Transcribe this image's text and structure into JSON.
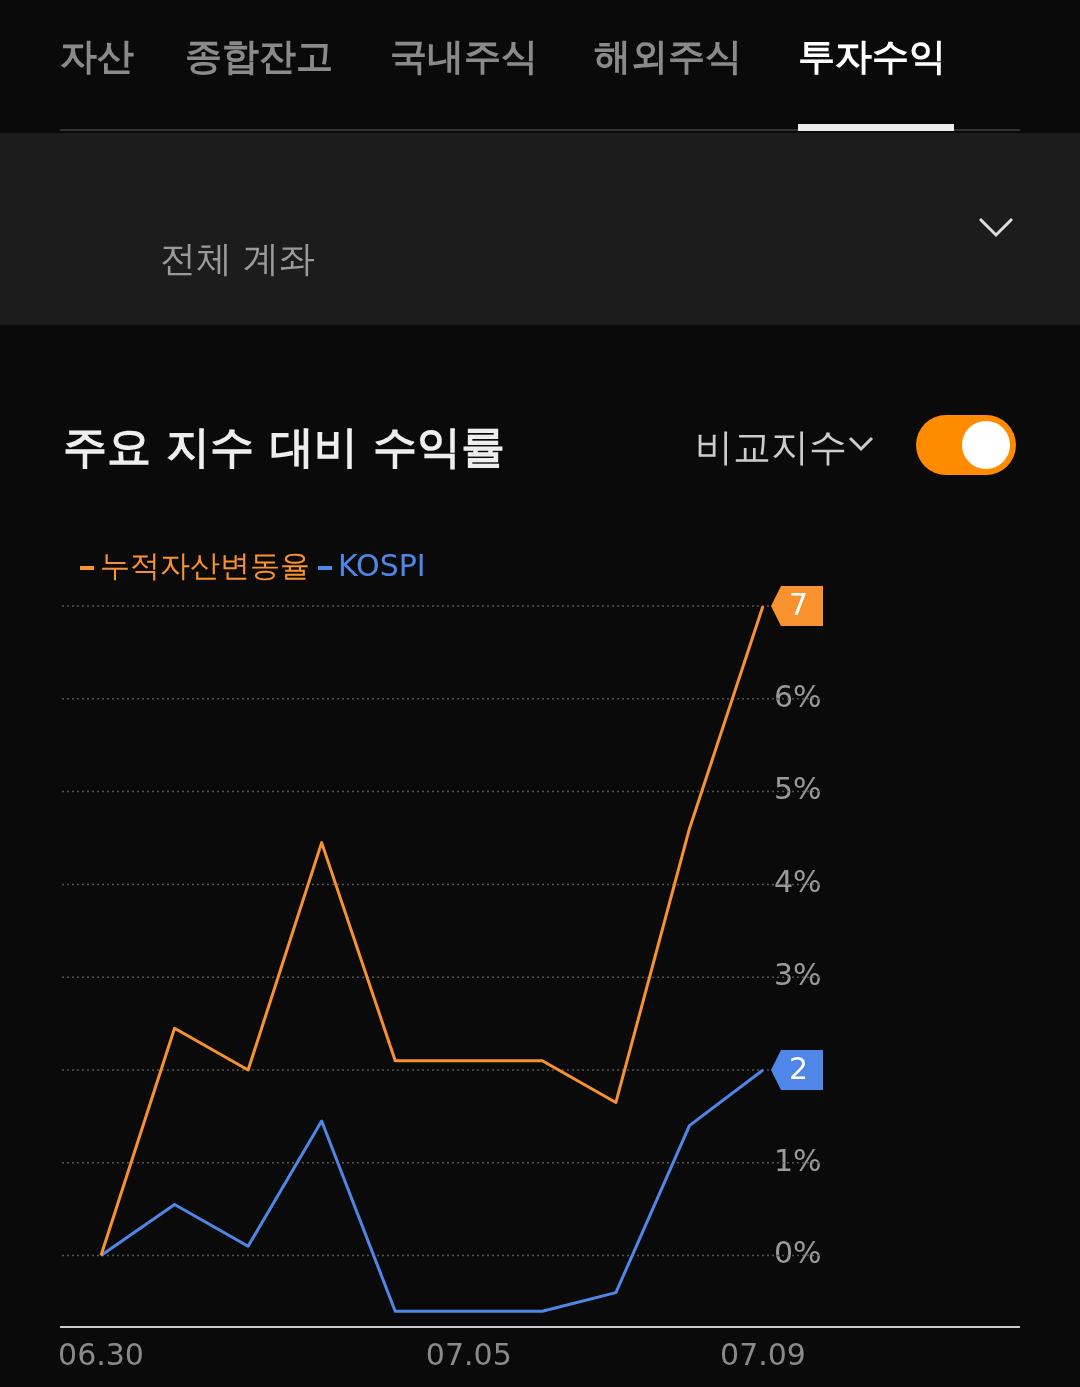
{
  "chart_data": {
    "type": "line",
    "title": "주요 지수 대비 수익률",
    "annotations": [
      "자산",
      "종합잔고",
      "국내주식",
      "해외주식",
      "투자수익",
      "전체 계좌",
      "비교지수"
    ],
    "categories": [
      "06.30",
      null,
      null,
      null,
      null,
      "07.05",
      null,
      null,
      null,
      "07.09"
    ],
    "series": [
      {
        "name": "누적자산변동율",
        "color": "#f7922f",
        "values": [
          0,
          2.45,
          2.0,
          4.45,
          2.1,
          2.1,
          2.1,
          1.65,
          4.6,
          7.0
        ],
        "value_labels": [
          null,
          null,
          null,
          null,
          null,
          null,
          null,
          null,
          null,
          "7"
        ]
      },
      {
        "name": "KOSPI",
        "color": "#4f86e8",
        "values": [
          0,
          0.55,
          0.1,
          1.45,
          -0.6,
          -0.6,
          -0.6,
          -0.4,
          1.4,
          2.0
        ],
        "value_labels": [
          null,
          null,
          null,
          null,
          null,
          null,
          null,
          null,
          null,
          "2"
        ]
      }
    ],
    "ylim": [
      -0.77,
      7
    ],
    "yticks": [
      {
        "value": 0,
        "label": "0%"
      },
      {
        "value": 1,
        "label": "1%"
      },
      {
        "value": 2,
        "label": null
      },
      {
        "value": 3,
        "label": "3%"
      },
      {
        "value": 4,
        "label": "4%"
      },
      {
        "value": 5,
        "label": "5%"
      },
      {
        "value": 6,
        "label": "6%"
      },
      {
        "value": 7,
        "label": null
      }
    ],
    "grid": "y",
    "legend": "top left",
    "marker": "none",
    "line_style": "solid"
  }
}
